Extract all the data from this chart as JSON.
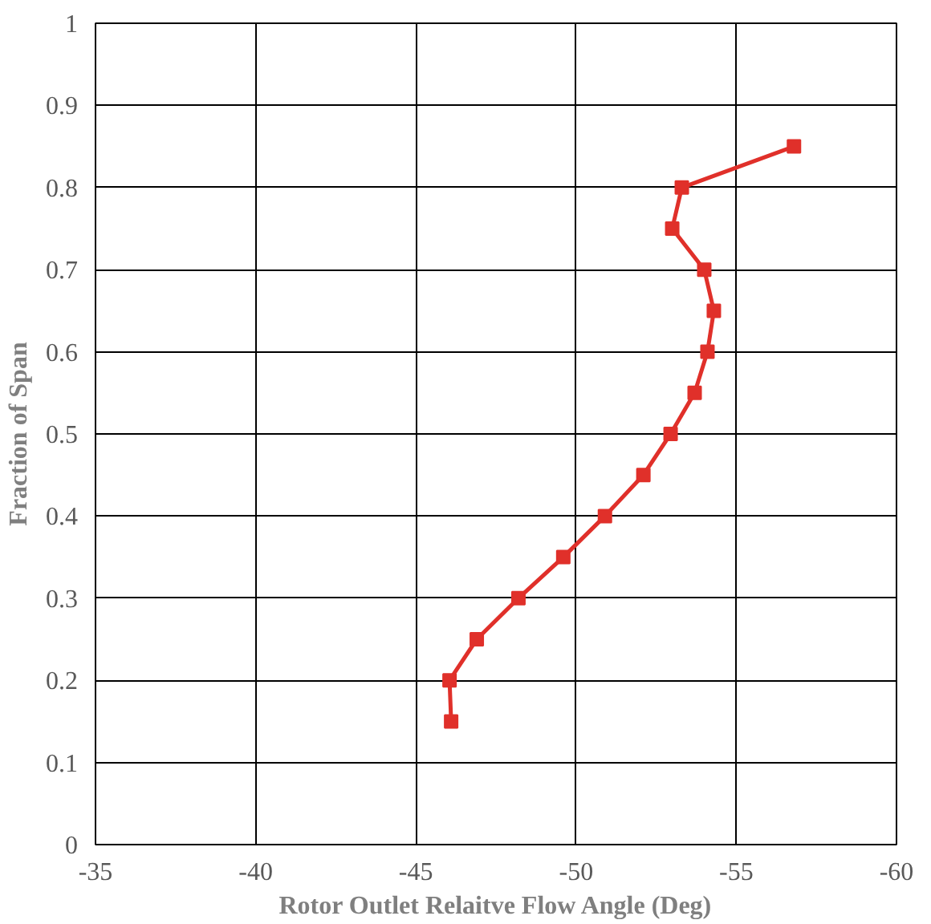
{
  "chart_data": {
    "type": "line",
    "xlabel": "Rotor Outlet Relaitve Flow Angle (Deg)",
    "ylabel": "Fraction of Span",
    "xlim": [
      -35,
      -60
    ],
    "xticks": [
      -35,
      -40,
      -45,
      -50,
      -55,
      -60
    ],
    "ylim": [
      0,
      1
    ],
    "yticks": [
      0,
      0.1,
      0.2,
      0.3,
      0.4,
      0.5,
      0.6,
      0.7,
      0.8,
      0.9,
      1
    ],
    "grid": true,
    "marker": "square",
    "line_style": "solid",
    "series": [
      {
        "color": "#e0302a",
        "x": [
          -46.1,
          -46.05,
          -46.9,
          -48.2,
          -49.6,
          -50.9,
          -52.1,
          -52.95,
          -53.7,
          -54.1,
          -54.3,
          -54.0,
          -53.0,
          -53.3,
          -56.8
        ],
        "values": [
          0.15,
          0.2,
          0.25,
          0.3,
          0.35,
          0.4,
          0.45,
          0.5,
          0.55,
          0.6,
          0.65,
          0.7,
          0.75,
          0.8,
          0.85
        ]
      }
    ]
  }
}
